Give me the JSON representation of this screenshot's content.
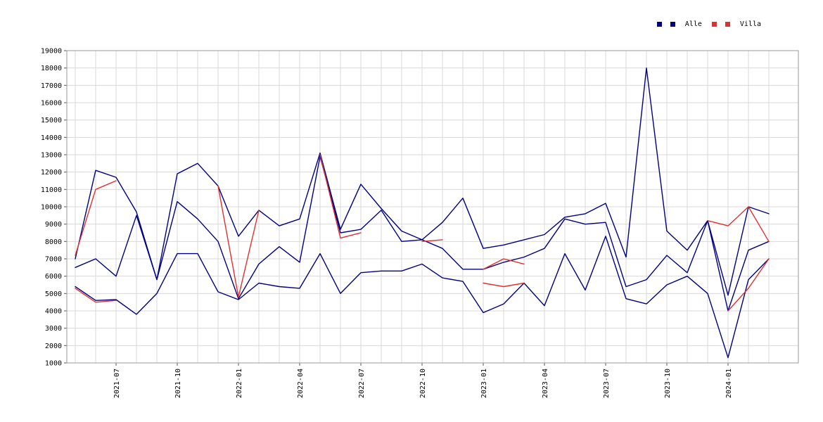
{
  "legend": {
    "items": [
      {
        "label": "Alle",
        "color": "#000080"
      },
      {
        "label": "Villa",
        "color": "#e03131"
      }
    ]
  },
  "colors": {
    "grid": "#d8d8d8",
    "frame": "#9a9a9a",
    "tick": "#555555",
    "text": "#000000"
  },
  "chart_data": {
    "type": "line",
    "title": "",
    "xlabel": "",
    "ylabel": "",
    "ylim": [
      1000,
      19000
    ],
    "ytick_step": 1000,
    "grid": "on",
    "legend_position": "top-right",
    "x": [
      "2021-05",
      "2021-06",
      "2021-07",
      "2021-08",
      "2021-09",
      "2021-10",
      "2021-11",
      "2021-12",
      "2022-01",
      "2022-02",
      "2022-03",
      "2022-04",
      "2022-05",
      "2022-06",
      "2022-07",
      "2022-08",
      "2022-09",
      "2022-10",
      "2022-11",
      "2022-12",
      "2023-01",
      "2023-02",
      "2023-03",
      "2023-04",
      "2023-05",
      "2023-06",
      "2023-07",
      "2023-08",
      "2023-09",
      "2023-10",
      "2023-11",
      "2023-12",
      "2024-01",
      "2024-02",
      "2024-03"
    ],
    "x_tick_labels": [
      "2021-07",
      "2021-10",
      "2022-01",
      "2022-04",
      "2022-07",
      "2022-10",
      "2023-01",
      "2023-04",
      "2023-07",
      "2023-10",
      "2024-01"
    ],
    "series": [
      {
        "name": "Alle (upper)",
        "color": "#000080",
        "values": [
          7000,
          12100,
          11700,
          9700,
          5800,
          11900,
          12500,
          11200,
          8300,
          9800,
          8900,
          9300,
          13100,
          8700,
          11300,
          9900,
          8600,
          8100,
          9100,
          10500,
          7600,
          7800,
          8100,
          8400,
          9400,
          9600,
          10200,
          7100,
          18000,
          8600,
          7500,
          9200,
          4900,
          10000,
          9600
        ]
      },
      {
        "name": "Alle (middle)",
        "color": "#000080",
        "values": [
          6500,
          7000,
          6000,
          9500,
          5800,
          10300,
          9300,
          8000,
          4700,
          6700,
          7700,
          6800,
          12900,
          8500,
          8700,
          9800,
          8000,
          8100,
          7600,
          6400,
          6400,
          6800,
          7100,
          7600,
          9300,
          9000,
          9100,
          5400,
          5800,
          7200,
          6200,
          9200,
          4000,
          7500,
          8000
        ]
      },
      {
        "name": "Alle (lower)",
        "color": "#000080",
        "values": [
          5400,
          4600,
          4650,
          3800,
          5000,
          7300,
          7300,
          5100,
          4650,
          5600,
          5400,
          5300,
          7300,
          5000,
          6200,
          6300,
          6300,
          6700,
          5900,
          5700,
          3900,
          4400,
          5600,
          4300,
          7300,
          5200,
          8300,
          4700,
          4400,
          5500,
          6000,
          5000,
          1300,
          5800,
          7000
        ]
      },
      {
        "name": "Villa (upper)",
        "color": "#e03131",
        "values": [
          7200,
          11000,
          11500,
          null,
          null,
          null,
          null,
          11200,
          4800,
          9800,
          null,
          null,
          13000,
          8200,
          8500,
          null,
          null,
          8000,
          8100,
          null,
          6400,
          7000,
          6700,
          null,
          null,
          null,
          null,
          null,
          null,
          null,
          null,
          9200,
          8900,
          10000,
          8000
        ]
      },
      {
        "name": "Villa (lower)",
        "color": "#e03131",
        "values": [
          5300,
          4500,
          4600,
          null,
          null,
          null,
          null,
          null,
          null,
          null,
          null,
          null,
          null,
          null,
          null,
          null,
          null,
          null,
          null,
          null,
          5600,
          5400,
          5600,
          null,
          null,
          null,
          null,
          null,
          null,
          null,
          null,
          null,
          4000,
          5300,
          7000
        ]
      }
    ]
  }
}
